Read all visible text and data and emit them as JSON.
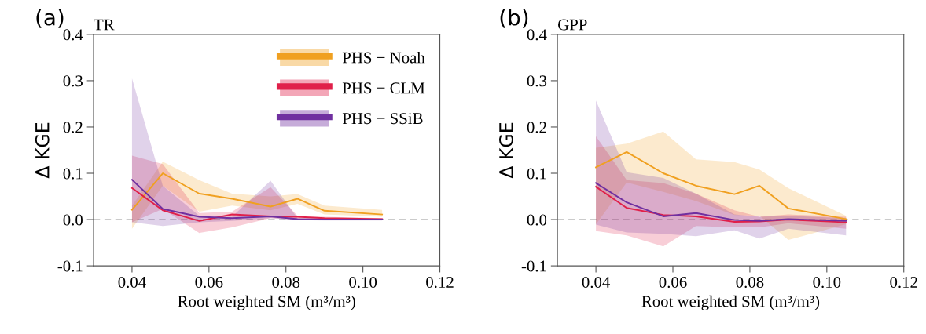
{
  "chart_data": [
    {
      "type": "line",
      "title": "TR",
      "xlabel": "Root weighted SM (m³/m³)",
      "ylabel": "Δ KGE",
      "annotations": [
        "(a)"
      ],
      "xlim": [
        0.03,
        0.12
      ],
      "ylim": [
        -0.1,
        0.4
      ],
      "xticks": [
        {
          "value": 0.04,
          "label": "0.04"
        },
        {
          "value": 0.06,
          "label": "0.06"
        },
        {
          "value": 0.08,
          "label": "0.08"
        },
        {
          "value": 0.1,
          "label": "0.10"
        },
        {
          "value": 0.12,
          "label": "0.12"
        }
      ],
      "yticks": [
        {
          "value": -0.1,
          "label": "-0.1"
        },
        {
          "value": 0.0,
          "label": "0.0"
        },
        {
          "value": 0.1,
          "label": "0.1"
        },
        {
          "value": 0.2,
          "label": "0.2"
        },
        {
          "value": 0.3,
          "label": "0.3"
        },
        {
          "value": 0.4,
          "label": "0.4"
        }
      ],
      "x": [
        0.04,
        0.048,
        0.0575,
        0.066,
        0.076,
        0.083,
        0.09,
        0.105
      ],
      "ref_lines": [
        {
          "axis": "y",
          "value": 0,
          "color": "#bbbbbb",
          "line_style": "dashed"
        }
      ],
      "legend": "top right",
      "grid": false,
      "series": [
        {
          "name": "PHS − Noah",
          "color": "#f0a020",
          "values": [
            0.021,
            0.1,
            0.056,
            0.045,
            0.028,
            0.045,
            0.019,
            0.011
          ],
          "lower": [
            -0.02,
            0.073,
            0.017,
            0.03,
            0.02,
            0.034,
            0.011,
            0.006
          ],
          "upper": [
            0.03,
            0.125,
            0.085,
            0.056,
            0.05,
            0.055,
            0.03,
            0.021
          ]
        },
        {
          "name": "PHS − CLM",
          "color": "#e0204a",
          "values": [
            0.068,
            0.02,
            -0.003,
            0.011,
            0.007,
            0.006,
            0.003,
            0.001
          ],
          "lower": [
            -0.006,
            0.023,
            -0.029,
            -0.017,
            0.003,
            0.0,
            -0.001,
            -0.001
          ],
          "upper": [
            0.138,
            0.12,
            0.014,
            0.017,
            0.07,
            0.008,
            0.006,
            0.003
          ]
        },
        {
          "name": "PHS − SSiB",
          "color": "#7030a0",
          "values": [
            0.086,
            0.023,
            0.006,
            0.003,
            0.007,
            0.001,
            0.0,
            0.0
          ],
          "lower": [
            -0.006,
            -0.014,
            -0.006,
            -0.003,
            0.003,
            -0.001,
            -0.002,
            -0.002
          ],
          "upper": [
            0.305,
            0.073,
            0.008,
            0.006,
            0.084,
            0.003,
            0.003,
            0.001
          ]
        }
      ]
    },
    {
      "type": "line",
      "title": "GPP",
      "xlabel": "Root weighted SM (m³/m³)",
      "ylabel": "Δ KGE",
      "annotations": [
        "(b)"
      ],
      "xlim": [
        0.03,
        0.12
      ],
      "ylim": [
        -0.1,
        0.4
      ],
      "xticks": [
        {
          "value": 0.04,
          "label": "0.04"
        },
        {
          "value": 0.06,
          "label": "0.06"
        },
        {
          "value": 0.08,
          "label": "0.08"
        },
        {
          "value": 0.1,
          "label": "0.10"
        },
        {
          "value": 0.12,
          "label": "0.12"
        }
      ],
      "yticks": [
        {
          "value": -0.1,
          "label": "-0.1"
        },
        {
          "value": 0.0,
          "label": "0.0"
        },
        {
          "value": 0.1,
          "label": "0.1"
        },
        {
          "value": 0.2,
          "label": "0.2"
        },
        {
          "value": 0.3,
          "label": "0.3"
        },
        {
          "value": 0.4,
          "label": "0.4"
        }
      ],
      "x": [
        0.04,
        0.048,
        0.0575,
        0.066,
        0.076,
        0.0825,
        0.09,
        0.105
      ],
      "ref_lines": [
        {
          "axis": "y",
          "value": 0,
          "color": "#bbbbbb",
          "line_style": "dashed"
        }
      ],
      "legend": false,
      "grid": false,
      "series": [
        {
          "color": "#f0a020",
          "values": [
            0.113,
            0.146,
            0.1,
            0.073,
            0.055,
            0.073,
            0.024,
            0.001
          ],
          "lower": [
            -0.01,
            0.08,
            0.06,
            0.04,
            0.01,
            0.008,
            -0.044,
            -0.01
          ],
          "upper": [
            0.155,
            0.164,
            0.19,
            0.13,
            0.124,
            0.108,
            0.068,
            0.008
          ]
        },
        {
          "color": "#e0204a",
          "values": [
            0.071,
            0.025,
            0.01,
            0.007,
            -0.005,
            -0.004,
            0.0,
            -0.006
          ],
          "lower": [
            -0.025,
            -0.034,
            -0.058,
            -0.014,
            -0.017,
            -0.017,
            -0.008,
            -0.02
          ],
          "upper": [
            0.18,
            0.085,
            0.079,
            0.056,
            0.02,
            0.006,
            0.011,
            0.006
          ]
        },
        {
          "color": "#7030a0",
          "values": [
            0.079,
            0.037,
            0.007,
            0.014,
            -0.001,
            -0.003,
            0.001,
            -0.003
          ],
          "lower": [
            -0.011,
            -0.028,
            -0.031,
            -0.036,
            -0.023,
            -0.041,
            -0.02,
            -0.034
          ],
          "upper": [
            0.257,
            0.102,
            0.09,
            0.056,
            0.011,
            0.006,
            0.008,
            0.003
          ]
        }
      ]
    }
  ]
}
